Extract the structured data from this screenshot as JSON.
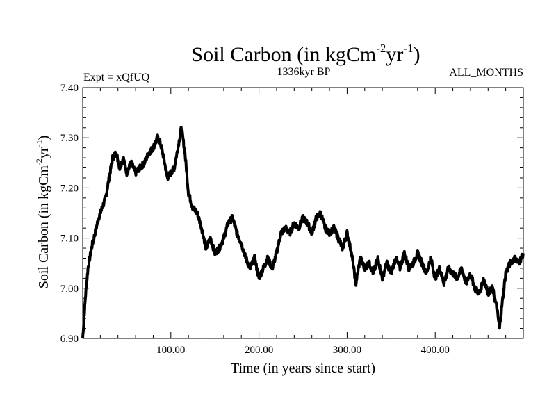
{
  "chart_data": {
    "type": "line",
    "title_main": "Soil Carbon (in kgCm",
    "title_sup1": "-2",
    "title_mid": "yr",
    "title_sup2": "-1",
    "title_end": ")",
    "subtitle_left": "Expt = xQfUQ",
    "subtitle_center": "1336kyr BP",
    "subtitle_right": "ALL_MONTHS",
    "xlabel": "Time (in years since start)",
    "ylabel_main": "Soil Carbon (in kgCm",
    "ylabel_sup1": "-2",
    "ylabel_mid": "yr",
    "ylabel_sup2": "-1",
    "ylabel_end": ")",
    "xlim": [
      0,
      500
    ],
    "ylim": [
      6.9,
      7.4
    ],
    "xticks": [
      100,
      200,
      300,
      400
    ],
    "xtick_labels": [
      "100.00",
      "200.00",
      "300.00",
      "400.00"
    ],
    "yticks": [
      6.9,
      7.0,
      7.1,
      7.2,
      7.3,
      7.4
    ],
    "ytick_labels": [
      "6.90",
      "7.00",
      "7.10",
      "7.20",
      "7.30",
      "7.40"
    ],
    "grid": false,
    "line_color": "#000000",
    "series": [
      {
        "x": [
          0,
          3,
          6,
          10,
          14,
          18,
          22,
          26,
          30,
          34,
          38,
          42,
          46,
          50,
          55,
          60,
          65,
          70,
          75,
          80,
          85,
          88,
          92,
          96,
          100,
          104,
          108,
          112,
          116,
          120,
          125,
          130,
          135,
          140,
          145,
          150,
          155,
          160,
          165,
          170,
          175,
          180,
          185,
          190,
          195,
          200,
          205,
          210,
          215,
          220,
          225,
          230,
          235,
          240,
          245,
          250,
          255,
          260,
          265,
          270,
          275,
          280,
          285,
          290,
          295,
          300,
          305,
          310,
          315,
          320,
          325,
          330,
          335,
          340,
          345,
          350,
          355,
          360,
          365,
          370,
          375,
          380,
          385,
          390,
          395,
          400,
          405,
          410,
          415,
          420,
          425,
          430,
          435,
          440,
          445,
          450,
          455,
          460,
          465,
          470,
          473,
          476,
          480,
          485,
          490,
          495,
          500
        ],
        "y": [
          6.9,
          6.98,
          7.04,
          7.08,
          7.11,
          7.14,
          7.16,
          7.18,
          7.22,
          7.26,
          7.27,
          7.24,
          7.26,
          7.23,
          7.25,
          7.23,
          7.24,
          7.25,
          7.27,
          7.28,
          7.3,
          7.29,
          7.26,
          7.22,
          7.23,
          7.24,
          7.28,
          7.32,
          7.27,
          7.19,
          7.16,
          7.15,
          7.12,
          7.08,
          7.1,
          7.07,
          7.08,
          7.1,
          7.13,
          7.14,
          7.11,
          7.09,
          7.06,
          7.04,
          7.06,
          7.02,
          7.04,
          7.06,
          7.04,
          7.07,
          7.11,
          7.12,
          7.11,
          7.13,
          7.12,
          7.14,
          7.13,
          7.11,
          7.14,
          7.15,
          7.12,
          7.11,
          7.12,
          7.1,
          7.08,
          7.11,
          7.07,
          7.01,
          7.06,
          7.04,
          7.05,
          7.03,
          7.06,
          7.02,
          7.05,
          7.03,
          7.06,
          7.04,
          7.07,
          7.04,
          7.05,
          7.07,
          7.05,
          7.03,
          7.06,
          7.02,
          7.04,
          7.01,
          7.04,
          7.03,
          7.02,
          7.04,
          7.01,
          7.03,
          7.0,
          6.99,
          7.02,
          6.99,
          7.0,
          6.96,
          6.92,
          6.97,
          7.03,
          7.05,
          7.06,
          7.05,
          7.07
        ]
      }
    ]
  }
}
